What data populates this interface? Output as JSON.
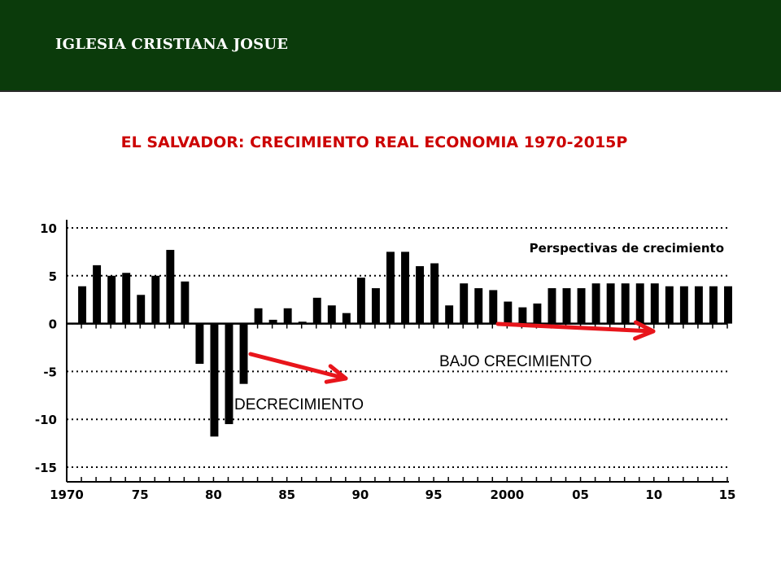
{
  "header": {
    "title": "IGLESIA CRISTIANA JOSUE"
  },
  "chart_title": "EL SALVADOR: CRECIMIENTO REAL ECONOMIA 1970-2015P",
  "colors": {
    "header_bg": "#0b3b0b",
    "title": "#cc0000",
    "bars": "#000000",
    "arrows": "#e8151b"
  },
  "chart_data": {
    "type": "bar",
    "title": "EL SALVADOR: CRECIMIENTO REAL ECONOMIA 1970-2015P",
    "xlabel": "",
    "ylabel": "",
    "ylim": [
      -15,
      10
    ],
    "yticks": [
      "10",
      "5",
      "0",
      "-5",
      "-10",
      "-15"
    ],
    "xtick_labels": [
      "1970",
      "75",
      "80",
      "85",
      "90",
      "95",
      "2000",
      "05",
      "10",
      "15"
    ],
    "grid": "dotted horizontal",
    "inner_label": "Perspectivas de crecimiento",
    "categories": [
      1970,
      1971,
      1972,
      1973,
      1974,
      1975,
      1976,
      1977,
      1978,
      1979,
      1980,
      1981,
      1982,
      1983,
      1984,
      1985,
      1986,
      1987,
      1988,
      1989,
      1990,
      1991,
      1992,
      1993,
      1994,
      1995,
      1996,
      1997,
      1998,
      1999,
      2000,
      2001,
      2002,
      2003,
      2004,
      2005,
      2006,
      2007,
      2008,
      2009,
      2010,
      2011,
      2012,
      2013,
      2014,
      2015
    ],
    "values": [
      0,
      3.9,
      6.1,
      5.0,
      5.3,
      3.0,
      5.0,
      7.7,
      4.4,
      -4.2,
      -11.8,
      -10.5,
      -6.3,
      1.6,
      0.4,
      1.6,
      0.2,
      2.7,
      1.9,
      1.1,
      4.8,
      3.7,
      7.5,
      7.5,
      6.0,
      6.3,
      1.9,
      4.2,
      3.7,
      3.5,
      2.3,
      1.7,
      2.1,
      3.7,
      3.7,
      3.7,
      4.2,
      4.2,
      4.2,
      4.2,
      4.2,
      3.9,
      3.9,
      3.9,
      3.9,
      3.9
    ]
  },
  "annotations": {
    "bajo": "BAJO CRECIMIENTO",
    "decrecimiento": "DECRECIMIENTO"
  }
}
